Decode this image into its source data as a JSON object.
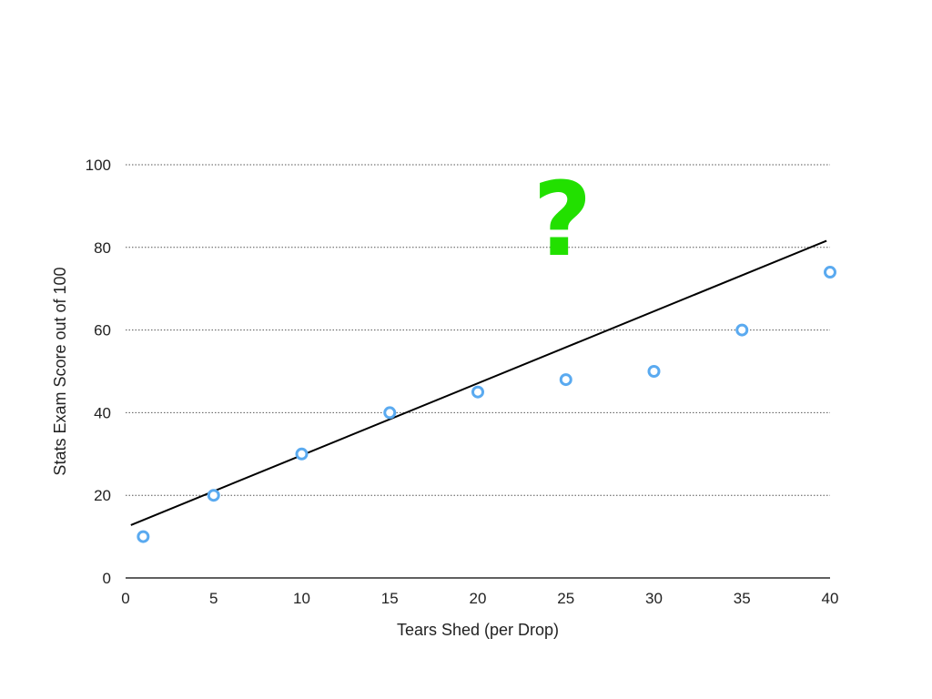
{
  "chart_data": {
    "type": "scatter",
    "title": "",
    "xlabel": "Tears Shed (per Drop)",
    "ylabel": "Stats Exam Score out of 100",
    "xlim": [
      0,
      40
    ],
    "ylim": [
      0,
      100
    ],
    "x_ticks": [
      0,
      5,
      10,
      15,
      20,
      25,
      30,
      35,
      40
    ],
    "y_ticks": [
      0,
      20,
      40,
      60,
      80,
      100
    ],
    "grid": "horizontal dotted",
    "legend": "none",
    "series": [
      {
        "x": [
          1,
          5,
          10,
          15,
          20,
          25,
          30,
          35,
          40
        ],
        "y": [
          10,
          20,
          30,
          40,
          45,
          48,
          50,
          60,
          74
        ],
        "color": "#5aaaf0"
      }
    ],
    "trend_line": {
      "x": [
        0.3,
        39.8
      ],
      "y": [
        12.8,
        81.6
      ],
      "color": "#000000"
    },
    "annotation": {
      "text": "?",
      "x": 24.8,
      "y": 87,
      "color": "#22e000"
    }
  }
}
